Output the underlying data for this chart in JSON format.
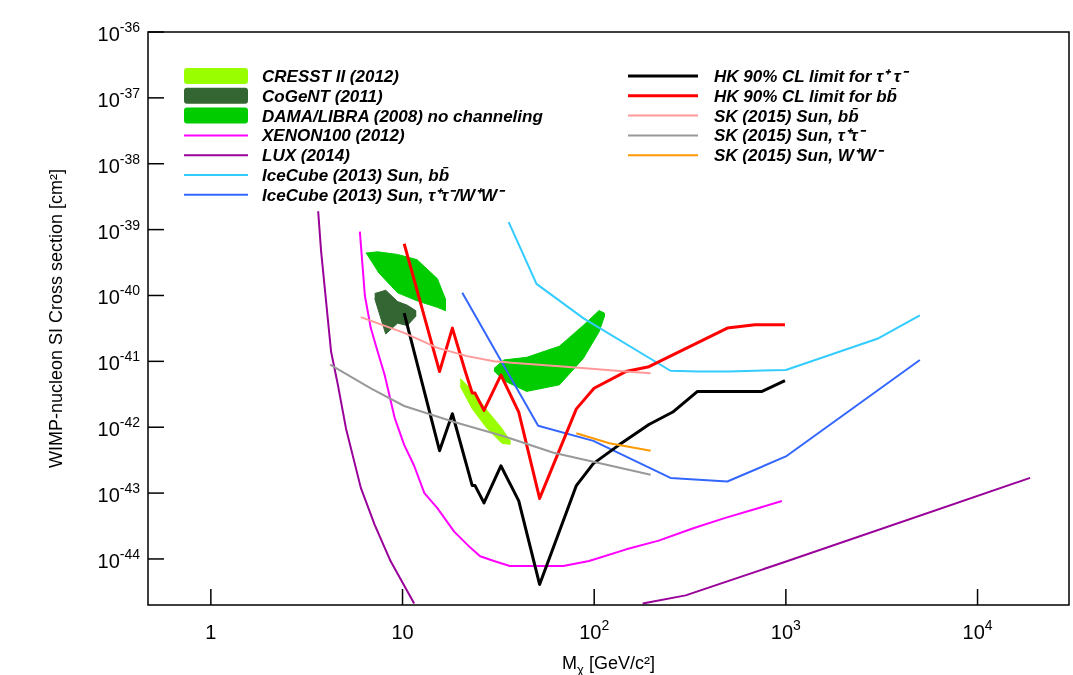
{
  "chart_data": {
    "type": "line",
    "xlabel": "M$_{χ}$ [GeV/c²]",
    "ylabel": "WIMP-nucleon SI Cross section [cm²]",
    "log": "xy",
    "grid": false,
    "legend": "top",
    "xlim": [
      0.47,
      30000
    ],
    "ylim": [
      2e-45,
      1e-36
    ],
    "xticks": [
      1,
      10,
      {
        "value": 100,
        "label": "10$^{2}$"
      },
      {
        "value": 1000,
        "label": "10$^{3}$"
      },
      {
        "value": 10000,
        "label": "10$^{4}$"
      }
    ],
    "yticks": [
      {
        "value": 1e-44,
        "label": "10$^{-44}$"
      },
      {
        "value": 1e-43,
        "label": "10$^{-43}$"
      },
      {
        "value": 1e-42,
        "label": "10$^{-42}$"
      },
      {
        "value": 1e-41,
        "label": "10$^{-41}$"
      },
      {
        "value": 1e-40,
        "label": "10$^{-40}$"
      },
      {
        "value": 1e-39,
        "label": "10$^{-39}$"
      },
      {
        "value": 1e-38,
        "label": "10$^{-38}$"
      },
      {
        "value": 1e-37,
        "label": "10$^{-37}$"
      },
      {
        "value": 1e-36,
        "label": "10$^{-36}$"
      }
    ],
    "series": [
      {
        "name": "CRESST II (2012)",
        "type": "area",
        "color": "#99ff00",
        "x": [
          20,
          23.1,
          27.6,
          33,
          36.3,
          36.3,
          33,
          27.6,
          23.1,
          20
        ],
        "values": [
          5.5e-42,
          3.6e-42,
          1.8e-42,
          9.6e-43,
          6.3e-43,
          5.5e-43,
          5.7e-43,
          9.6e-43,
          1.9e-42,
          4.2e-42
        ]
      },
      {
        "name": "CoGeNT (2011)",
        "type": "area",
        "color": "#336633",
        "x": [
          7.16,
          8.17,
          9.42,
          10.6,
          11.7,
          11.7,
          10.6,
          9.42,
          8.17,
          7.16
        ],
        "values": [
          1.07e-40,
          1.2e-40,
          8.1e-41,
          7.1e-41,
          5.9e-41,
          4.8e-41,
          3.5e-41,
          3.8e-41,
          2.6e-41,
          9e-41
        ]
      },
      {
        "name": "DAMA/LIBRA (2008) no channeling",
        "type": "area",
        "color": "#00cc00",
        "x": [
          6.43,
          7.42,
          9.42,
          11.9,
          15.2,
          16.7,
          16.7,
          15.2,
          11.9,
          9.42,
          7.42
        ],
        "values": [
          4.4e-40,
          4.6e-40,
          4.2e-40,
          3.5e-40,
          1.8e-40,
          9e-41,
          5.9e-41,
          6.6e-41,
          8.3e-41,
          1.1e-40,
          2.3e-40
        ]
      },
      {
        "type": "area",
        "color": "#00cc00",
        "x": [
          30,
          33.8,
          44.4,
          65.9,
          87.6,
          106,
          113,
          113,
          106,
          87.6,
          65.9,
          44.4,
          33.8,
          30
        ],
        "values": [
          7.8e-42,
          1.05e-41,
          1.15e-41,
          1.7e-41,
          3.5e-41,
          5.9e-41,
          5.4e-41,
          4.8e-41,
          2.8e-41,
          1.1e-41,
          4.4e-42,
          3.5e-42,
          5.1e-42,
          7.2e-42
        ]
      },
      {
        "name": "XENON100 (2012)",
        "type": "line",
        "color": "#ff00ff",
        "x": [
          5.99,
          6.36,
          6.83,
          7.42,
          8.07,
          9.09,
          10.2,
          11.5,
          13,
          15.2,
          18.6,
          22.5,
          25.4,
          30,
          36.3,
          69,
          94,
          147,
          217,
          326,
          483,
          716,
          953
        ],
        "values": [
          9.3e-40,
          1e-40,
          3.2e-41,
          1.4e-41,
          6.2e-42,
          1.4e-42,
          5.4e-43,
          2.6e-43,
          1e-43,
          5.9e-44,
          2.6e-44,
          1.5e-44,
          1.1e-44,
          9.3e-45,
          7.8e-45,
          7.8e-45,
          9.3e-45,
          1.4e-44,
          1.9e-44,
          2.9e-44,
          4.2e-44,
          5.9e-44,
          7.6e-44
        ]
      },
      {
        "name": "LUX (2014)",
        "type": "line",
        "color": "#990099",
        "x": [
          3.63,
          3.76,
          4.24,
          4.6,
          5.07,
          6.06,
          7.16,
          8.66,
          11.5,
          50,
          179,
          300,
          977,
          18800
        ],
        "values": [
          1.9e-39,
          4.7e-40,
          1.4e-41,
          4.4e-42,
          9.6e-43,
          1.2e-43,
          3.3e-44,
          9.3e-45,
          2.1e-45,
          null,
          2.1e-45,
          2.8e-45,
          8.9e-45,
          1.7e-43
        ]
      },
      {
        "name": "IceCube (2013) Sun, bb̄",
        "type": "line",
        "color": "#33ccff",
        "x": [
          35.8,
          50,
          88,
          250,
          350,
          500,
          1000,
          3000,
          5000
        ],
        "values": [
          1.3e-39,
          1.5e-40,
          4.5e-41,
          7.2e-42,
          7e-42,
          7e-42,
          7.4e-42,
          2.2e-41,
          5e-41
        ]
      },
      {
        "name": "IceCube (2013) Sun, τ⁺τ⁻/W⁺W⁻",
        "type": "line",
        "color": "#3366ff",
        "x": [
          20.5,
          51,
          99,
          250,
          495,
          1000,
          5000
        ],
        "values": [
          1.1e-40,
          1.05e-42,
          6.2e-43,
          1.7e-43,
          1.5e-43,
          3.6e-43,
          1.05e-41
        ]
      },
      {
        "name": "HK 90% CL limit for τ⁺ τ⁻",
        "type": "line",
        "color": "#000000",
        "x": [
          10.2,
          15.6,
          18.2,
          23.1,
          23.9,
          26.6,
          32.6,
          40.4,
          51.9,
          80.7,
          98.9,
          135,
          193,
          257,
          346,
          751,
          989
        ],
        "values": [
          5.4e-41,
          4.4e-43,
          1.6e-42,
          1.3e-43,
          1.3e-43,
          7.1e-44,
          2.6e-43,
          7.6e-44,
          4.1e-45,
          1.3e-43,
          2.8e-43,
          5.4e-43,
          1.1e-42,
          1.7e-42,
          3.5e-42,
          3.5e-42,
          5.1e-42
        ]
      },
      {
        "name": "HK 90% CL limit for bb̄",
        "type": "line",
        "color": "#ff0000",
        "x": [
          10.2,
          15.6,
          18.2,
          21.2,
          23.1,
          23.9,
          26.6,
          32.6,
          40.4,
          51.9,
          80.7,
          99.8,
          146,
          193,
          495,
          690,
          989
        ],
        "values": [
          6.1e-40,
          7e-42,
          3.2e-41,
          7.2e-42,
          3.3e-42,
          3.3e-42,
          1.8e-42,
          6.2e-42,
          1.7e-42,
          8.3e-44,
          1.9e-42,
          3.9e-42,
          7e-42,
          8.3e-42,
          3.2e-41,
          3.6e-41,
          3.6e-41
        ]
      },
      {
        "name": "SK (2015) Sun, bb̄",
        "type": "line",
        "color": "#ff9999",
        "x": [
          6.06,
          10.2,
          15.2,
          21.7,
          30,
          65.9,
          147,
          197
        ],
        "values": [
          4.7e-41,
          2.7e-41,
          1.6e-41,
          1.2e-41,
          1e-41,
          8.4e-42,
          7e-42,
          6.6e-42
        ]
      },
      {
        "name": "SK (2015) Sun, τ⁺τ⁻",
        "type": "line",
        "color": "#999999",
        "x": [
          4.19,
          6.83,
          10.2,
          18.6,
          33.8,
          61.3,
          98.9,
          197
        ],
        "values": [
          8.9e-42,
          3.9e-42,
          2.1e-42,
          1.2e-42,
          7.3e-43,
          4.1e-43,
          3e-43,
          1.9e-43
        ]
      },
      {
        "name": "SK (2015) Sun, W⁺W⁻",
        "type": "line",
        "color": "#ff9900",
        "x": [
          80.7,
          120,
          197
        ],
        "values": [
          8.1e-43,
          5.7e-43,
          4.4e-43
        ]
      }
    ]
  }
}
